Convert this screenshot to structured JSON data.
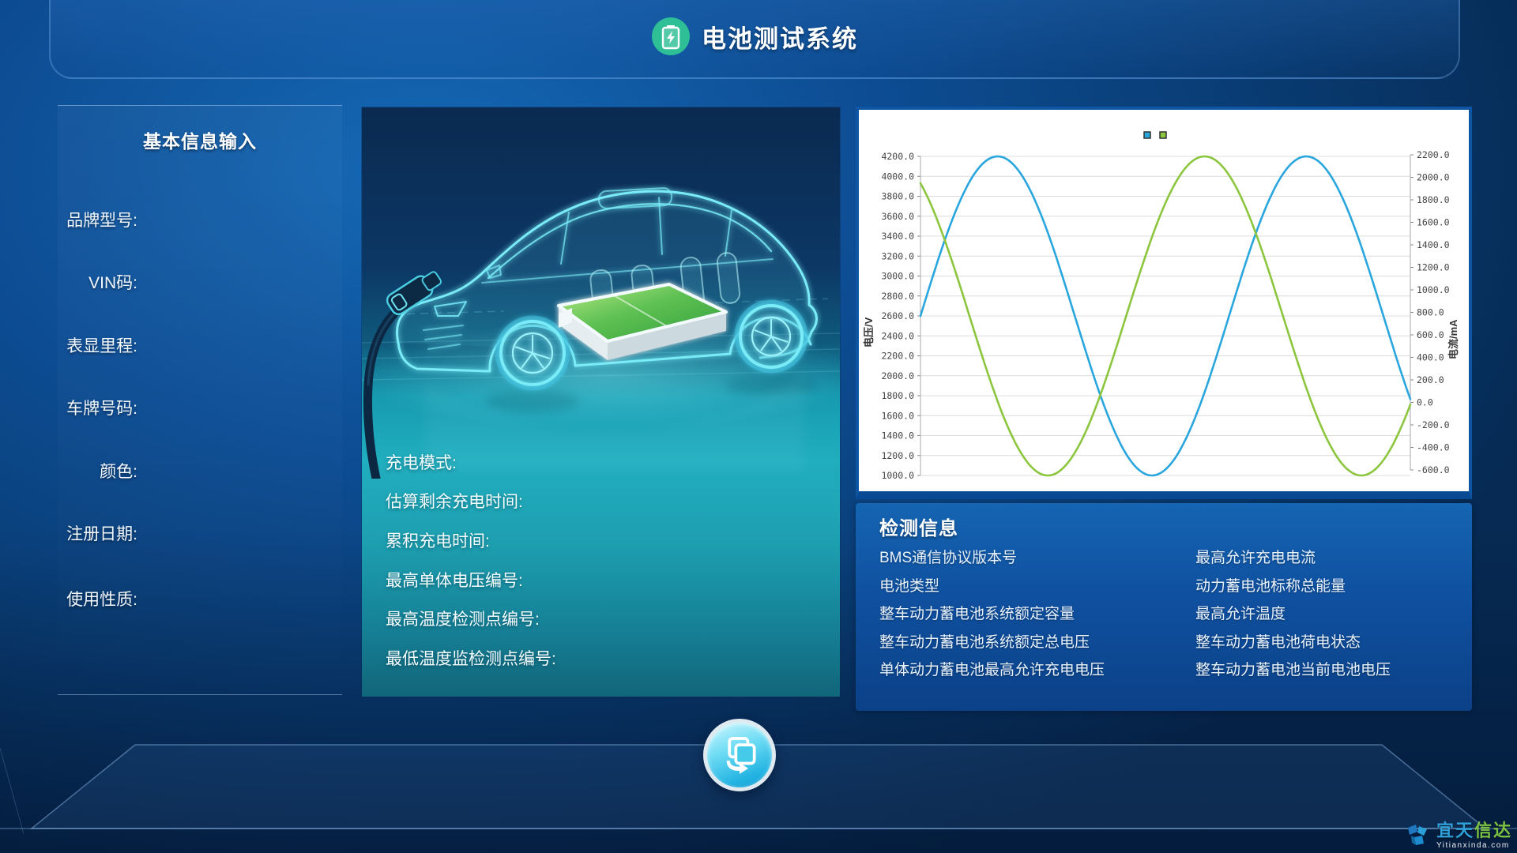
{
  "header": {
    "title": "电池测试系统",
    "icon": "battery-charging-icon"
  },
  "sidebar": {
    "title": "基本信息输入",
    "fields": [
      {
        "label": "品牌型号:",
        "value": ""
      },
      {
        "label": "VIN码:",
        "value": ""
      },
      {
        "label": "表显里程:",
        "value": ""
      },
      {
        "label": "车牌号码:",
        "value": ""
      },
      {
        "label": "颜色:",
        "value": ""
      },
      {
        "label": "注册日期:",
        "value": ""
      },
      {
        "label": "使用性质:",
        "value": ""
      }
    ]
  },
  "vehicle_panel": {
    "fields": [
      "充电模式:",
      "估算剩余充电时间:",
      "累积充电时间:",
      "最高单体电压编号:",
      "最高温度检测点编号:",
      "最低温度监检测点编号:"
    ]
  },
  "chart_data": {
    "type": "line",
    "ylabel_left": "电压/V",
    "ylabel_right": "电流/mA",
    "y_left": {
      "min": 1000,
      "max": 4200,
      "step": 200,
      "tick_labels": [
        "4200.0",
        "4000.0",
        "3800.0",
        "3600.0",
        "3400.0",
        "3200.0",
        "3000.0",
        "2800.0",
        "2600.0",
        "2400.0",
        "2200.0",
        "2000.0",
        "1800.0",
        "1600.0",
        "1400.0",
        "1200.0",
        "1000.0"
      ]
    },
    "y_right": {
      "min": -600,
      "max": 2200,
      "step": 200,
      "tick_labels": [
        "2200.0",
        "2000.0",
        "1800.0",
        "1600.0",
        "1400.0",
        "1200.0",
        "1000.0",
        "800.0",
        "600.0",
        "400.0",
        "200.0",
        "0.0",
        "-200.0",
        "-400.0",
        "-600.0"
      ]
    },
    "grid": true,
    "legend_position": "top-center",
    "series": [
      {
        "name": "电压",
        "color": "#2aa6de",
        "waveform": "sine",
        "center": 2600,
        "amplitude": 1600,
        "period_fraction": 0.63,
        "zero_cross_rising_at": 0.0,
        "key_points": {
          "start_value": 2600,
          "peak_value": 4200,
          "peak_at": 0.157,
          "min_value": 1000,
          "min_at": 0.47,
          "end_value": 1760
        }
      },
      {
        "name": "电流",
        "color": "#8cc63e",
        "waveform": "sine",
        "center": 2600,
        "amplitude": 1600,
        "period_fraction": 0.64,
        "zero_cross_rising_at": 0.42,
        "key_points": {
          "start_value": 3950,
          "min_value": 1000,
          "min_at": 0.26,
          "peak_value": 4200,
          "peak_at": 0.58,
          "second_min_at": 0.9,
          "end_value": 1710
        }
      }
    ]
  },
  "detection": {
    "title": "检测信息",
    "left_items": [
      "BMS通信协议版本号",
      "电池类型",
      "整车动力蓄电池系统额定容量",
      "整车动力蓄电池系统额定总电压",
      "单体动力蓄电池最高允许充电电压"
    ],
    "right_items": [
      "最高允许充电电流",
      "动力蓄电池标称总能量",
      "最高允许温度",
      "整车动力蓄电池荷电状态",
      "整车动力蓄电池当前电池电压"
    ]
  },
  "footer": {
    "sync_button_icon": "transfer-copy-arrow-icon"
  },
  "watermark": {
    "cn_blue": "宜天",
    "cn_green": "信达",
    "en": "Yitianxinda.com"
  },
  "colors": {
    "accent_teal": "#2fbf96",
    "curve_blue": "#2aa6de",
    "curve_green": "#8cc63e",
    "panel_blue": "#0f50a0",
    "car_glow_cyan": "#79ecf7",
    "battery_green": "#4bb544"
  }
}
